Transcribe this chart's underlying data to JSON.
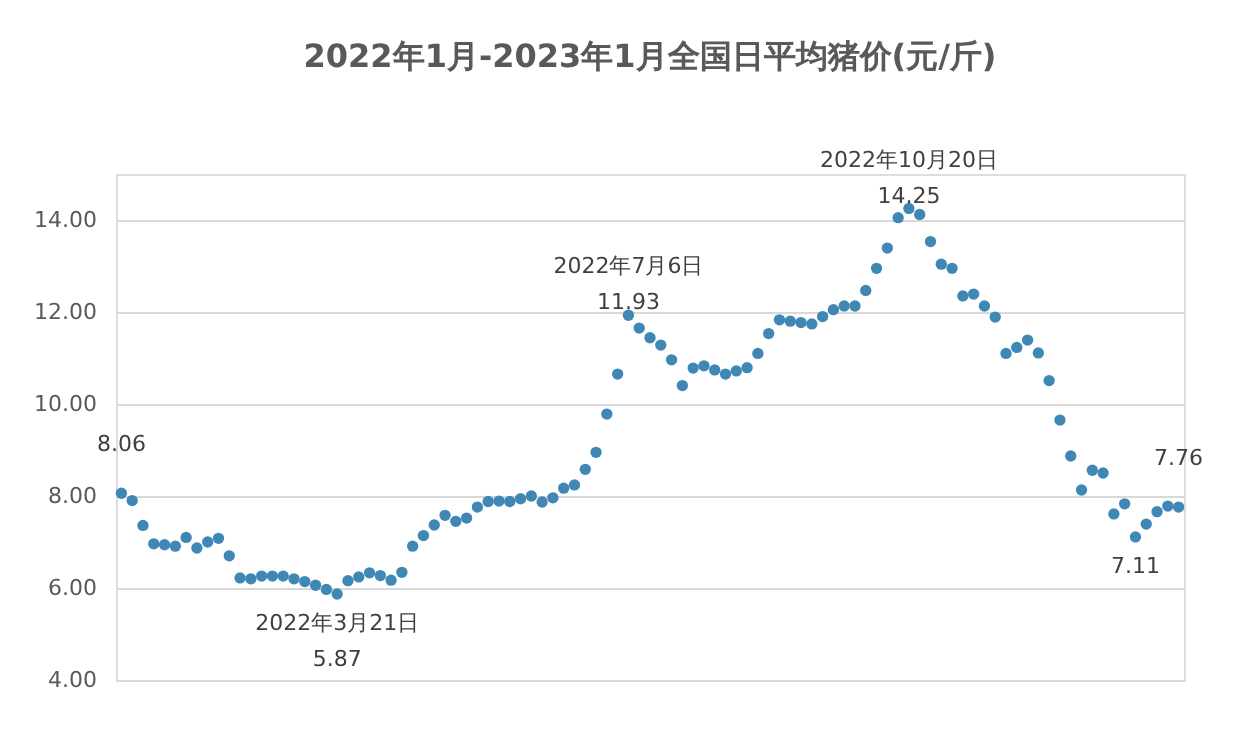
{
  "chart_data": {
    "type": "scatter",
    "title": "2022年1月-2023年1月全国日平均猪价(元/斤)",
    "categories": [
      null,
      null,
      null,
      null,
      null,
      null,
      null,
      null,
      null,
      null,
      null,
      null,
      null,
      null,
      null,
      null,
      null,
      null,
      null,
      null,
      null,
      null,
      null,
      null,
      null,
      null,
      null,
      null,
      null,
      null,
      null,
      null,
      null,
      null,
      null,
      null,
      null,
      null,
      null,
      null,
      null,
      null,
      null,
      null,
      null,
      null,
      null,
      null,
      null,
      null,
      null,
      null,
      null,
      null,
      null,
      null,
      null,
      null,
      null,
      null,
      null,
      null,
      null,
      null,
      null,
      null,
      null,
      null,
      null,
      null,
      null,
      null,
      null,
      null,
      null,
      null,
      null,
      null,
      null,
      null,
      null,
      null,
      null,
      null,
      null,
      null,
      null,
      null,
      null,
      null,
      null,
      null,
      null,
      null,
      null,
      null,
      null,
      null,
      null
    ],
    "series": [
      {
        "color": "#3f87b5",
        "values": [
          8.06,
          7.9,
          7.36,
          6.96,
          6.94,
          6.91,
          7.1,
          6.87,
          7.0,
          7.08,
          6.7,
          6.22,
          6.2,
          6.26,
          6.26,
          6.26,
          6.2,
          6.14,
          6.06,
          5.97,
          5.87,
          6.16,
          6.24,
          6.33,
          6.27,
          6.17,
          6.34,
          6.91,
          7.14,
          7.37,
          7.58,
          7.45,
          7.52,
          7.76,
          7.88,
          7.89,
          7.88,
          7.94,
          8.0,
          7.87,
          7.96,
          8.17,
          8.24,
          8.58,
          8.95,
          9.78,
          10.65,
          11.93,
          11.65,
          11.44,
          11.28,
          10.96,
          10.4,
          10.78,
          10.83,
          10.74,
          10.65,
          10.72,
          10.79,
          11.1,
          11.53,
          11.83,
          11.8,
          11.77,
          11.74,
          11.9,
          12.05,
          12.13,
          12.13,
          12.47,
          12.95,
          13.39,
          14.05,
          14.25,
          14.12,
          13.53,
          13.04,
          12.95,
          12.35,
          12.39,
          12.13,
          11.89,
          11.1,
          11.23,
          11.39,
          11.11,
          10.51,
          9.65,
          8.87,
          8.13,
          8.56,
          8.5,
          7.61,
          7.83,
          7.11,
          7.39,
          7.66,
          7.78,
          7.76
        ]
      }
    ],
    "ylim": [
      4,
      15
    ],
    "yticks": [
      {
        "value": 4,
        "label": "4.00"
      },
      {
        "value": 6,
        "label": "6.00"
      },
      {
        "value": 8,
        "label": "8.00"
      },
      {
        "value": 10,
        "label": "10.00"
      },
      {
        "value": 12,
        "label": "12.00"
      },
      {
        "value": 14,
        "label": "14.00"
      }
    ],
    "grid": "y",
    "tick_labels": "y",
    "marker": "circle",
    "annotations": [
      {
        "text": "8.06",
        "y": 8.06
      },
      {
        "text": "2022年3月21日\n5.87",
        "y": 5.87
      },
      {
        "text": "2022年7月6日\n11.93",
        "y": 11.93
      },
      {
        "text": "2022年10月20日\n14.25",
        "y": 14.25
      },
      {
        "text": "7.11",
        "y": 7.11
      },
      {
        "text": "7.76",
        "y": 7.76
      }
    ]
  }
}
